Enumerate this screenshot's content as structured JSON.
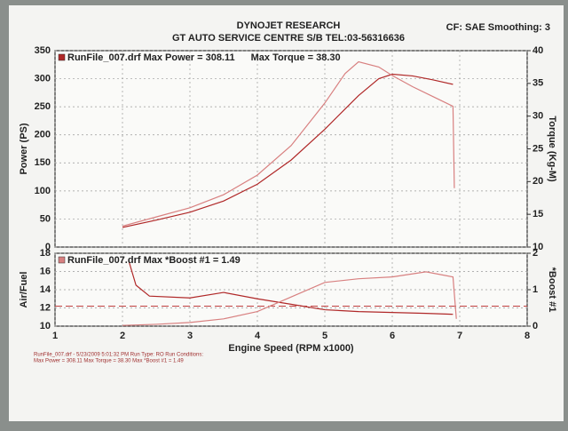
{
  "header": {
    "title": "DYNOJET RESEARCH",
    "subtitle": "GT AUTO SERVICE CENTRE S/B TEL:03-56316636",
    "settings": "CF: SAE  Smoothing: 3"
  },
  "footer": {
    "line1": "RunFile_007.drf - 5/23/2009 5:01:32 PM  Run Type: RO  Run Conditions:",
    "line2": "Max Power = 308.11  Max Torque = 38.30  Max *Boost #1 = 1.49"
  },
  "chart_data": [
    {
      "type": "line",
      "ylabel": "Power (PS)",
      "y2label": "Torque (Kg-M)",
      "xlim": [
        1,
        8
      ],
      "xticks": [
        1,
        2,
        3,
        4,
        5,
        6,
        7,
        8
      ],
      "xtick_labels": false,
      "ylim": [
        0,
        350
      ],
      "yticks": [
        0,
        50,
        100,
        150,
        200,
        250,
        300,
        350
      ],
      "y2lim": [
        10,
        40
      ],
      "y2ticks": [
        10,
        15,
        20,
        25,
        30,
        35,
        40
      ],
      "grid": true,
      "series": [
        {
          "name": "RunFile_007.drf Max Power = 308.11",
          "color": "#b02828",
          "x": [
            2.0,
            2.5,
            3.0,
            3.5,
            4.0,
            4.5,
            5.0,
            5.5,
            5.8,
            6.0,
            6.3,
            6.6,
            6.9
          ],
          "values": [
            35,
            48,
            62,
            82,
            112,
            155,
            210,
            270,
            300,
            308,
            305,
            298,
            290
          ]
        },
        {
          "name": "Max Torque = 38.30",
          "color": "#d88080",
          "axis": "y2",
          "x": [
            2.0,
            2.5,
            3.0,
            3.5,
            4.0,
            4.5,
            5.0,
            5.3,
            5.5,
            5.8,
            6.0,
            6.3,
            6.6,
            6.9,
            6.92
          ],
          "values": [
            13.2,
            14.6,
            16.0,
            18.0,
            21.0,
            25.5,
            32.0,
            36.5,
            38.3,
            37.5,
            36.2,
            34.5,
            33.0,
            31.5,
            19
          ]
        }
      ]
    },
    {
      "type": "line",
      "xlabel": "Engine Speed (RPM x1000)",
      "ylabel": "Air/Fuel",
      "y2label": "*Boost #1",
      "xlim": [
        1,
        8
      ],
      "xticks": [
        1,
        2,
        3,
        4,
        5,
        6,
        7,
        8
      ],
      "ylim": [
        10,
        18
      ],
      "yticks": [
        10,
        12,
        14,
        16,
        18
      ],
      "y2lim": [
        0,
        2
      ],
      "y2ticks": [
        0,
        1,
        2
      ],
      "grid": true,
      "hline": 12.2,
      "series": [
        {
          "color": "#b02828",
          "x": [
            2.1,
            2.2,
            2.4,
            3.0,
            3.5,
            4.0,
            4.5,
            5.0,
            5.5,
            6.0,
            6.5,
            6.9
          ],
          "values": [
            17.0,
            14.5,
            13.3,
            13.1,
            13.7,
            13.0,
            12.4,
            11.8,
            11.6,
            11.5,
            11.4,
            11.3
          ]
        },
        {
          "name": "RunFile_007.drf Max *Boost #1 = 1.49",
          "color": "#d88080",
          "axis": "y2",
          "x": [
            2.0,
            2.5,
            3.0,
            3.5,
            4.0,
            4.5,
            5.0,
            5.5,
            6.0,
            6.5,
            6.9,
            6.95
          ],
          "values": [
            0.02,
            0.05,
            0.1,
            0.2,
            0.4,
            0.8,
            1.2,
            1.3,
            1.35,
            1.49,
            1.35,
            0.2
          ]
        }
      ]
    }
  ]
}
